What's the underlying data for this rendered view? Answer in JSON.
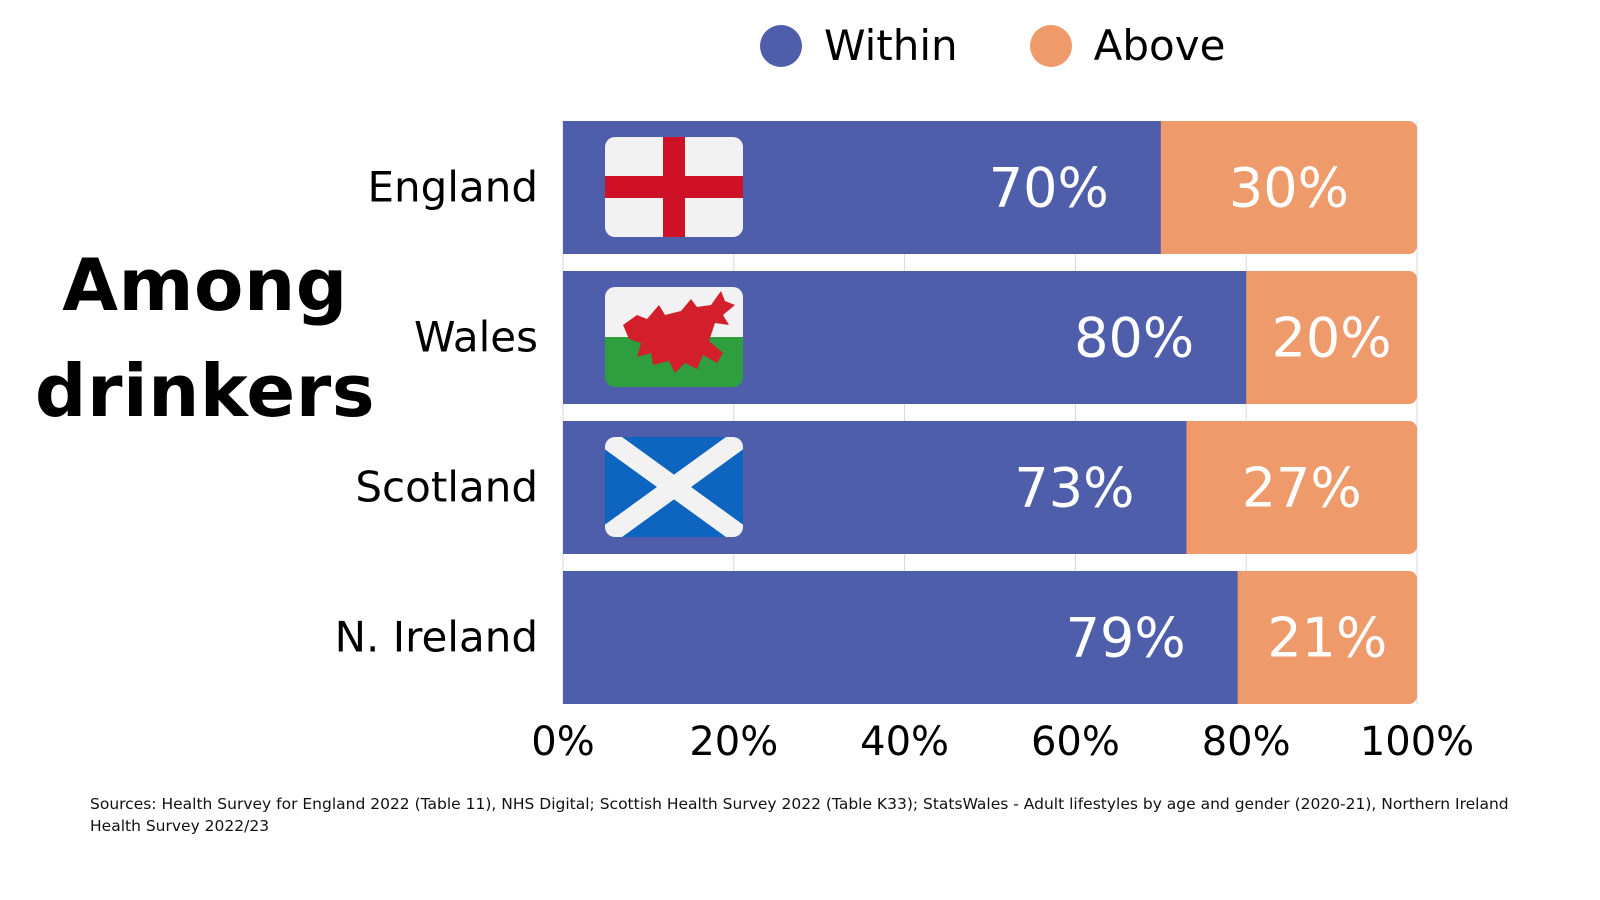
{
  "side_title": "Among drinkers",
  "legend": {
    "within": "Within",
    "above": "Above"
  },
  "colors": {
    "within": "#4F5EAA",
    "above": "#EE9A6A",
    "grid": "#D9D9D9"
  },
  "sources": "Sources: Health Survey for England 2022 (Table 11), NHS Digital; Scottish Health Survey 2022 (Table K33); StatsWales - Adult lifestyles by age and gender (2020-21), Northern Ireland Health Survey 2022/23",
  "chart_data": {
    "type": "bar",
    "orientation": "horizontal",
    "stacked": true,
    "categories": [
      "England",
      "Wales",
      "Scotland",
      "N. Ireland"
    ],
    "category_icons": [
      "england-flag",
      "wales-flag",
      "scotland-flag",
      null
    ],
    "series": [
      {
        "name": "Within",
        "values": [
          70,
          80,
          73,
          79
        ],
        "labels": [
          "70%",
          "80%",
          "73%",
          "79%"
        ]
      },
      {
        "name": "Above",
        "values": [
          30,
          20,
          27,
          21
        ],
        "labels": [
          "30%",
          "20%",
          "27%",
          "21%"
        ]
      }
    ],
    "xlim": [
      0,
      100
    ],
    "xticks": [
      0,
      20,
      40,
      60,
      80,
      100
    ],
    "xtick_labels": [
      "0%",
      "20%",
      "40%",
      "60%",
      "80%",
      "100%"
    ],
    "grid": true,
    "legend_position": "top"
  }
}
